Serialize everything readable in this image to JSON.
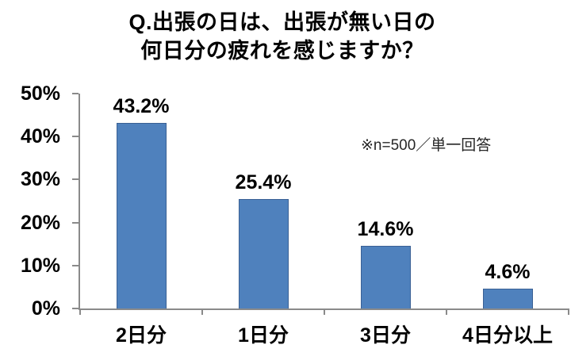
{
  "title": {
    "line1": "Q.出張の日は、出張が無い日の",
    "line2": "何日分の疲れを感じますか？"
  },
  "annotation": "※n=500／単一回答",
  "colors": {
    "bar_fill": "#4f81bd",
    "bar_border": "#3a6094",
    "axis": "#8a8a8a",
    "title_text": "#000000",
    "annotation_text": "#262626"
  },
  "chart_data": {
    "type": "bar",
    "title": "Q.出張の日は、出張が無い日の何日分の疲れを感じますか？",
    "categories": [
      "2日分",
      "1日分",
      "3日分",
      "4日分以上"
    ],
    "values": [
      43.2,
      25.4,
      14.6,
      4.6
    ],
    "value_labels": [
      "43.2%",
      "25.4%",
      "14.6%",
      "4.6%"
    ],
    "xlabel": "",
    "ylabel": "",
    "ylim": [
      0,
      50
    ],
    "ytick_step": 10,
    "ytick_labels": [
      "0%",
      "10%",
      "20%",
      "30%",
      "40%",
      "50%"
    ],
    "grid": false,
    "legend": null,
    "annotation": "※n=500／単一回答"
  }
}
